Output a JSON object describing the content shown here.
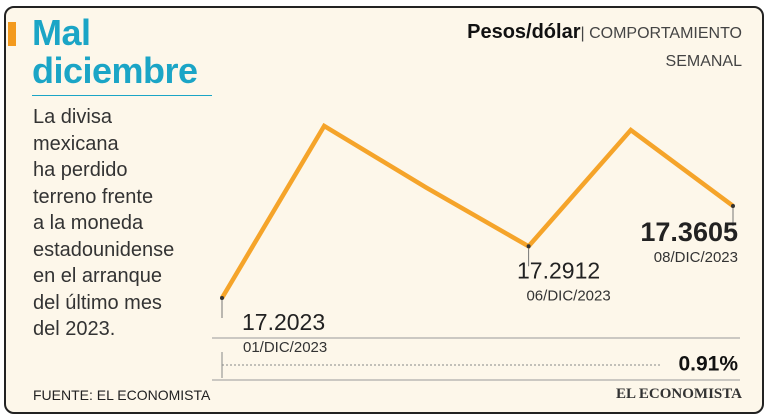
{
  "header": {
    "title": "Mal diciembre",
    "body": [
      "La divisa",
      "mexicana",
      "ha perdido",
      "terreno frente",
      "a la moneda",
      "estadounidense",
      "en el arranque",
      "del último mes",
      "del 2023."
    ]
  },
  "chart_data": {
    "type": "line",
    "title": "Pesos/dólar",
    "subtitle": "| COMPORTAMIENTO SEMANAL",
    "categories": [
      "01/DIC/2023",
      null,
      null,
      "06/DIC/2023",
      null,
      "08/DIC/2023"
    ],
    "values": [
      17.2023,
      17.498,
      17.392,
      17.2912,
      17.491,
      17.3605
    ],
    "color": "#f5a42a",
    "annotation": "0.91%"
  },
  "footer": {
    "source": "FUENTE: EL ECONOMISTA",
    "logo": "EL ECONOMISTA"
  }
}
